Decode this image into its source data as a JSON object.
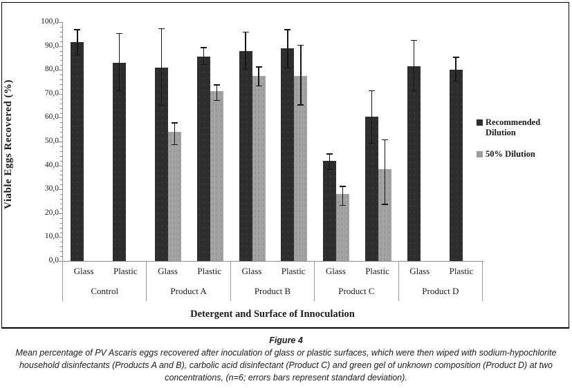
{
  "figure": {
    "y_axis": {
      "title": "Viable Eggs Recovered (%)",
      "min": 0,
      "max": 100,
      "major_step": 10,
      "minor_step": 2,
      "decimal_separator": ","
    },
    "x_axis": {
      "title": "Detergent and Surface of Innoculation"
    },
    "legend": {
      "items": [
        {
          "label": "Recommended Dilution",
          "color": "#2d2d2d"
        },
        {
          "label": "50% Dilution",
          "color": "#9e9e9e"
        }
      ]
    }
  },
  "chart_data": {
    "type": "bar",
    "title": "",
    "xlabel": "Detergent and Surface of Innoculation",
    "ylabel": "Viable Eggs Recovered (%)",
    "ylim": [
      0,
      100
    ],
    "grid": false,
    "legend_position": "right",
    "error_bars": "standard deviation",
    "y_tick_labels": [
      "0,0",
      "10,0",
      "20,0",
      "30,0",
      "40,0",
      "50,0",
      "60,0",
      "70,0",
      "80,0",
      "90,0",
      "100,0"
    ],
    "groups": [
      "Control",
      "Product A",
      "Product B",
      "Product C",
      "Product D"
    ],
    "surfaces_per_group": [
      "Glass",
      "Plastic"
    ],
    "categories": [
      "Control Glass",
      "Control Plastic",
      "Product A Glass",
      "Product A Plastic",
      "Product B Glass",
      "Product B Plastic",
      "Product C Glass",
      "Product C Plastic",
      "Product D Glass",
      "Product D Plastic"
    ],
    "series": [
      {
        "name": "Recommended Dilution",
        "color": "#2d2d2d",
        "values": [
          91.5,
          83,
          81,
          85.5,
          88,
          89,
          42,
          60.5,
          81.5,
          80
        ],
        "error_low": [
          86,
          71,
          65,
          82,
          80,
          80.5,
          38,
          49,
          71,
          75
        ],
        "error_high": [
          97,
          95.5,
          97.5,
          89.5,
          96,
          97,
          45,
          71.5,
          92.5,
          85.5
        ]
      },
      {
        "name": "50% Dilution",
        "color": "#a5a5a5",
        "values": [
          null,
          null,
          54,
          71,
          77.5,
          77.5,
          28,
          38.5,
          null,
          null
        ],
        "error_low": [
          null,
          null,
          48.5,
          67,
          73,
          65,
          23,
          23.5,
          null,
          null
        ],
        "error_high": [
          null,
          null,
          58,
          74,
          81.5,
          90.5,
          31.5,
          51,
          null,
          null
        ]
      }
    ]
  },
  "caption": {
    "title": "Figure 4",
    "text": "Mean percentage of PV Ascaris eggs recovered after inoculation of glass or plastic surfaces, which were then wiped with sodium-hypochlorite household disinfectants (Products A and B), carbolic acid disinfectant (Product C) and green gel of unknown composition (Product D) at two concentrations, (n=6; errors bars represent standard deviation)."
  }
}
